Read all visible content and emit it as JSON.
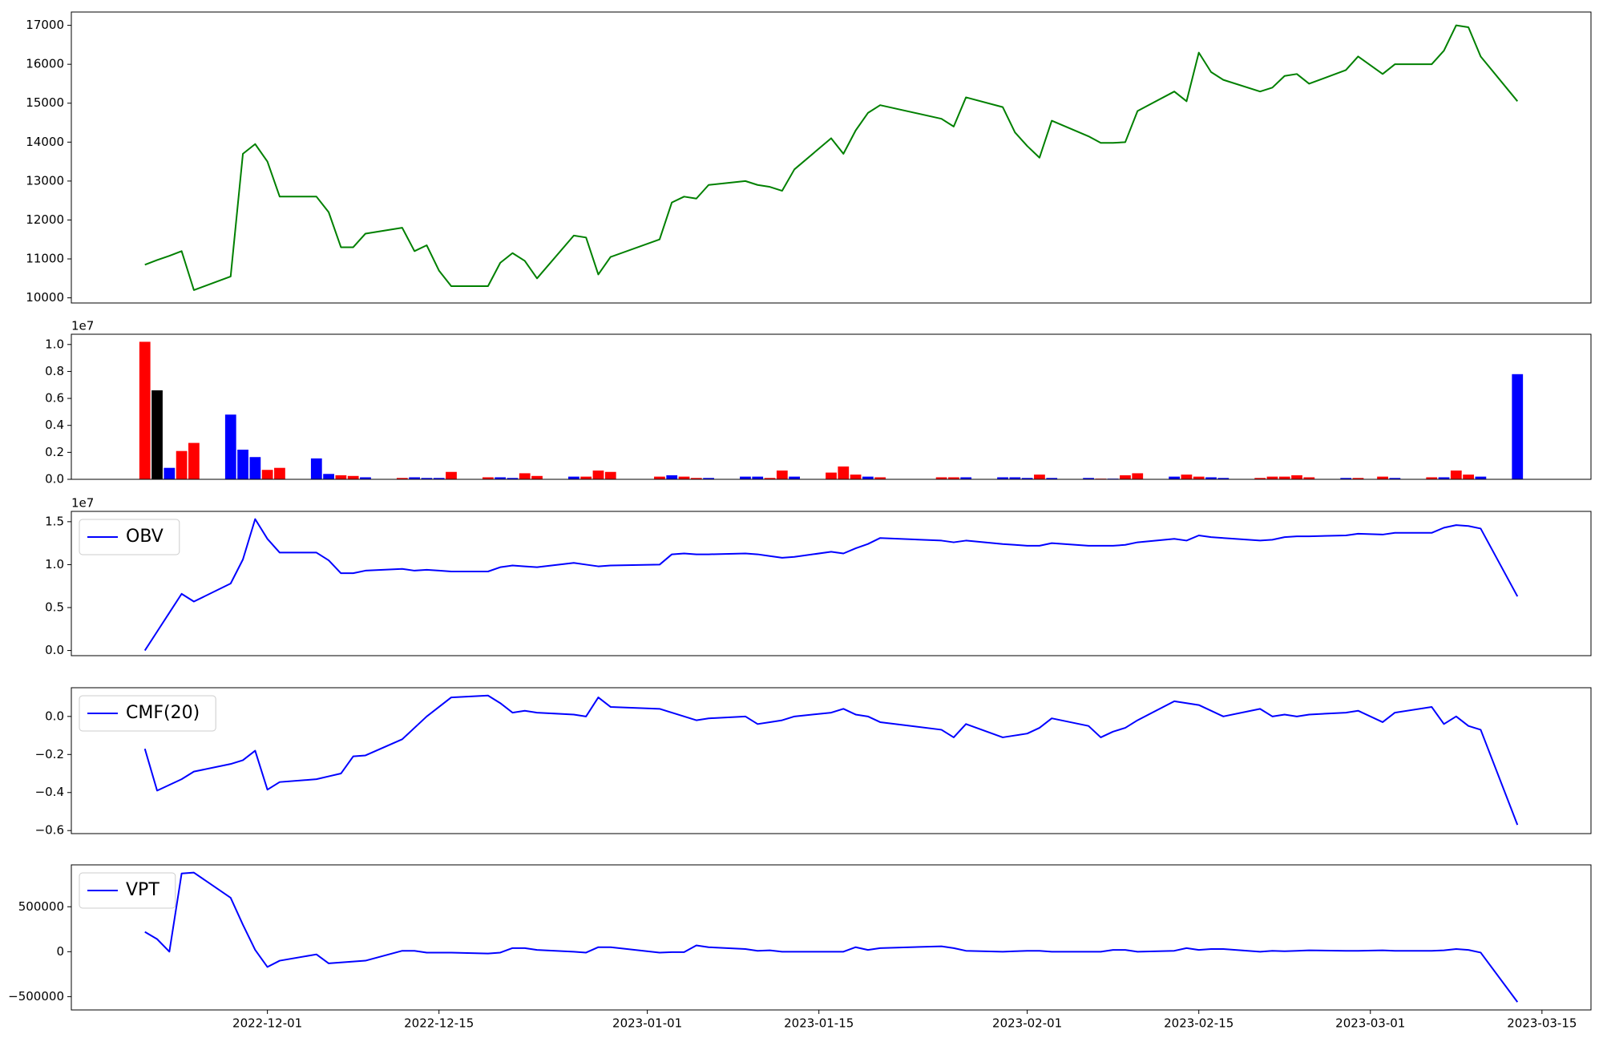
{
  "chart_data": [
    {
      "type": "line",
      "x": [
        "2022-11-21",
        "2022-11-22",
        "2022-11-23",
        "2022-11-24",
        "2022-11-25",
        "2022-11-28",
        "2022-11-29",
        "2022-11-30",
        "2022-12-01",
        "2022-12-02",
        "2022-12-05",
        "2022-12-06",
        "2022-12-07",
        "2022-12-08",
        "2022-12-09",
        "2022-12-12",
        "2022-12-13",
        "2022-12-14",
        "2022-12-15",
        "2022-12-16",
        "2022-12-19",
        "2022-12-20",
        "2022-12-21",
        "2022-12-22",
        "2022-12-23",
        "2022-12-26",
        "2022-12-27",
        "2022-12-28",
        "2022-12-29",
        "2023-01-02",
        "2023-01-03",
        "2023-01-04",
        "2023-01-05",
        "2023-01-06",
        "2023-01-09",
        "2023-01-10",
        "2023-01-11",
        "2023-01-12",
        "2023-01-13",
        "2023-01-16",
        "2023-01-17",
        "2023-01-18",
        "2023-01-19",
        "2023-01-20",
        "2023-01-25",
        "2023-01-26",
        "2023-01-27",
        "2023-01-30",
        "2023-01-31",
        "2023-02-01",
        "2023-02-02",
        "2023-02-03",
        "2023-02-06",
        "2023-02-07",
        "2023-02-08",
        "2023-02-09",
        "2023-02-10",
        "2023-02-13",
        "2023-02-14",
        "2023-02-15",
        "2023-02-16",
        "2023-02-17",
        "2023-02-20",
        "2023-02-21",
        "2023-02-22",
        "2023-02-23",
        "2023-02-24",
        "2023-02-27",
        "2023-02-28",
        "2023-03-02",
        "2023-03-03",
        "2023-03-06",
        "2023-03-07",
        "2023-03-08",
        "2023-03-09",
        "2023-03-10",
        "2023-03-13"
      ],
      "series": [
        {
          "color": "green",
          "values": [
            10850,
            10970,
            11080,
            11200,
            10200,
            10550,
            13700,
            13950,
            13500,
            12600,
            12600,
            12200,
            11300,
            11300,
            11650,
            11800,
            11200,
            11350,
            10700,
            10300,
            10300,
            10900,
            11150,
            10950,
            10500,
            11600,
            11550,
            10600,
            11050,
            11500,
            12450,
            12600,
            12550,
            12900,
            13000,
            12900,
            12850,
            12750,
            13300,
            14100,
            13700,
            14300,
            14750,
            14950,
            14600,
            14400,
            15150,
            14900,
            14250,
            13900,
            13600,
            14550,
            14150,
            13980,
            13980,
            14000,
            14800,
            15300,
            15050,
            16300,
            15800,
            15600,
            15300,
            15400,
            15700,
            15750,
            15500,
            15850,
            16200,
            15750,
            16000,
            16000,
            16350,
            17000,
            16950,
            16200,
            15050
          ]
        }
      ],
      "xlim": [
        "2022-11-15",
        "2023-03-19"
      ],
      "ylim": [
        9868,
        17342
      ],
      "yticks": [
        10000,
        11000,
        12000,
        13000,
        14000,
        15000,
        16000,
        17000
      ]
    },
    {
      "type": "bar",
      "x": [
        "2022-11-21",
        "2022-11-22",
        "2022-11-23",
        "2022-11-24",
        "2022-11-25",
        "2022-11-28",
        "2022-11-29",
        "2022-11-30",
        "2022-12-01",
        "2022-12-02",
        "2022-12-05",
        "2022-12-06",
        "2022-12-07",
        "2022-12-08",
        "2022-12-09",
        "2022-12-12",
        "2022-12-13",
        "2022-12-14",
        "2022-12-15",
        "2022-12-16",
        "2022-12-19",
        "2022-12-20",
        "2022-12-21",
        "2022-12-22",
        "2022-12-23",
        "2022-12-26",
        "2022-12-27",
        "2022-12-28",
        "2022-12-29",
        "2023-01-02",
        "2023-01-03",
        "2023-01-04",
        "2023-01-05",
        "2023-01-06",
        "2023-01-09",
        "2023-01-10",
        "2023-01-11",
        "2023-01-12",
        "2023-01-13",
        "2023-01-16",
        "2023-01-17",
        "2023-01-18",
        "2023-01-19",
        "2023-01-20",
        "2023-01-25",
        "2023-01-26",
        "2023-01-27",
        "2023-01-30",
        "2023-01-31",
        "2023-02-01",
        "2023-02-02",
        "2023-02-03",
        "2023-02-06",
        "2023-02-07",
        "2023-02-08",
        "2023-02-09",
        "2023-02-10",
        "2023-02-13",
        "2023-02-14",
        "2023-02-15",
        "2023-02-16",
        "2023-02-17",
        "2023-02-20",
        "2023-02-21",
        "2023-02-22",
        "2023-02-23",
        "2023-02-24",
        "2023-02-27",
        "2023-02-28",
        "2023-03-02",
        "2023-03-03",
        "2023-03-06",
        "2023-03-07",
        "2023-03-08",
        "2023-03-09",
        "2023-03-10",
        "2023-03-13"
      ],
      "values": [
        1.02,
        0.66,
        0.085,
        0.21,
        0.27,
        0.48,
        0.22,
        0.165,
        0.07,
        0.085,
        0.155,
        0.04,
        0.03,
        0.025,
        0.015,
        0.01,
        0.015,
        0.01,
        0.01,
        0.055,
        0.015,
        0.015,
        0.01,
        0.045,
        0.025,
        0.02,
        0.02,
        0.065,
        0.055,
        0.02,
        0.03,
        0.02,
        0.01,
        0.01,
        0.02,
        0.02,
        0.01,
        0.065,
        0.02,
        0.05,
        0.095,
        0.035,
        0.02,
        0.015,
        0.015,
        0.015,
        0.015,
        0.015,
        0.015,
        0.01,
        0.035,
        0.01,
        0.01,
        0.005,
        0.005,
        0.03,
        0.045,
        0.02,
        0.035,
        0.02,
        0.015,
        0.01,
        0.01,
        0.02,
        0.02,
        0.03,
        0.015,
        0.01,
        0.01,
        0.02,
        0.01,
        0.015,
        0.015,
        0.065,
        0.035,
        0.02,
        0.78
      ],
      "colors": [
        "red",
        "black",
        "blue",
        "red",
        "red",
        "blue",
        "blue",
        "blue",
        "red",
        "red",
        "blue",
        "blue",
        "red",
        "red",
        "blue",
        "red",
        "blue",
        "blue",
        "blue",
        "red",
        "red",
        "blue",
        "blue",
        "red",
        "red",
        "blue",
        "red",
        "red",
        "red",
        "red",
        "blue",
        "red",
        "red",
        "blue",
        "blue",
        "blue",
        "red",
        "red",
        "blue",
        "red",
        "red",
        "red",
        "blue",
        "red",
        "red",
        "red",
        "blue",
        "blue",
        "blue",
        "blue",
        "red",
        "blue",
        "blue",
        "red",
        "blue",
        "red",
        "red",
        "blue",
        "red",
        "red",
        "blue",
        "blue",
        "red",
        "red",
        "red",
        "red",
        "red",
        "blue",
        "red",
        "red",
        "blue",
        "red",
        "blue",
        "red",
        "red",
        "blue",
        "blue"
      ],
      "offset_label": "1e7",
      "xlim": [
        "2022-11-15",
        "2023-03-19"
      ],
      "ylim": [
        0,
        1.076
      ],
      "yticks": [
        {
          "value": 0,
          "label": "0.0"
        },
        {
          "value": 0.2,
          "label": "0.2"
        },
        {
          "value": 0.4,
          "label": "0.4"
        },
        {
          "value": 0.6,
          "label": "0.6"
        },
        {
          "value": 0.8,
          "label": "0.8"
        },
        {
          "value": 1,
          "label": "1.0"
        }
      ]
    },
    {
      "type": "line",
      "x": [
        "2022-11-21",
        "2022-11-22",
        "2022-11-23",
        "2022-11-24",
        "2022-11-25",
        "2022-11-28",
        "2022-11-29",
        "2022-11-30",
        "2022-12-01",
        "2022-12-02",
        "2022-12-05",
        "2022-12-06",
        "2022-12-07",
        "2022-12-08",
        "2022-12-09",
        "2022-12-12",
        "2022-12-13",
        "2022-12-14",
        "2022-12-15",
        "2022-12-16",
        "2022-12-19",
        "2022-12-20",
        "2022-12-21",
        "2022-12-22",
        "2022-12-23",
        "2022-12-26",
        "2022-12-27",
        "2022-12-28",
        "2022-12-29",
        "2023-01-02",
        "2023-01-03",
        "2023-01-04",
        "2023-01-05",
        "2023-01-06",
        "2023-01-09",
        "2023-01-10",
        "2023-01-11",
        "2023-01-12",
        "2023-01-13",
        "2023-01-16",
        "2023-01-17",
        "2023-01-18",
        "2023-01-19",
        "2023-01-20",
        "2023-01-25",
        "2023-01-26",
        "2023-01-27",
        "2023-01-30",
        "2023-01-31",
        "2023-02-01",
        "2023-02-02",
        "2023-02-03",
        "2023-02-06",
        "2023-02-07",
        "2023-02-08",
        "2023-02-09",
        "2023-02-10",
        "2023-02-13",
        "2023-02-14",
        "2023-02-15",
        "2023-02-16",
        "2023-02-17",
        "2023-02-20",
        "2023-02-21",
        "2023-02-22",
        "2023-02-23",
        "2023-02-24",
        "2023-02-27",
        "2023-02-28",
        "2023-03-02",
        "2023-03-03",
        "2023-03-06",
        "2023-03-07",
        "2023-03-08",
        "2023-03-09",
        "2023-03-10",
        "2023-03-13"
      ],
      "series": [
        {
          "name": "OBV",
          "color": "blue",
          "values": [
            0,
            0.22,
            0.44,
            0.66,
            0.57,
            0.78,
            1.06,
            1.53,
            1.3,
            1.14,
            1.14,
            1.05,
            0.9,
            0.9,
            0.93,
            0.95,
            0.93,
            0.94,
            0.93,
            0.92,
            0.92,
            0.97,
            0.99,
            0.98,
            0.97,
            1.02,
            1.0,
            0.98,
            0.99,
            1.0,
            1.12,
            1.13,
            1.12,
            1.12,
            1.13,
            1.12,
            1.1,
            1.08,
            1.09,
            1.15,
            1.13,
            1.19,
            1.24,
            1.31,
            1.28,
            1.26,
            1.28,
            1.24,
            1.23,
            1.22,
            1.22,
            1.25,
            1.22,
            1.22,
            1.22,
            1.23,
            1.26,
            1.3,
            1.28,
            1.34,
            1.32,
            1.31,
            1.28,
            1.29,
            1.32,
            1.33,
            1.33,
            1.34,
            1.36,
            1.35,
            1.37,
            1.37,
            1.43,
            1.46,
            1.45,
            1.42,
            0.63
          ]
        }
      ],
      "legend": "upper left",
      "offset_label": "1e7",
      "xlim": [
        "2022-11-15",
        "2023-03-19"
      ],
      "ylim": [
        -0.06,
        1.62
      ],
      "yticks": [
        {
          "value": 0,
          "label": "0.0"
        },
        {
          "value": 0.5,
          "label": "0.5"
        },
        {
          "value": 1,
          "label": "1.0"
        },
        {
          "value": 1.5,
          "label": "1.5"
        }
      ]
    },
    {
      "type": "line",
      "x": [
        "2022-11-21",
        "2022-11-22",
        "2022-11-23",
        "2022-11-24",
        "2022-11-25",
        "2022-11-28",
        "2022-11-29",
        "2022-11-30",
        "2022-12-01",
        "2022-12-02",
        "2022-12-05",
        "2022-12-06",
        "2022-12-07",
        "2022-12-08",
        "2022-12-09",
        "2022-12-12",
        "2022-12-13",
        "2022-12-14",
        "2022-12-15",
        "2022-12-16",
        "2022-12-19",
        "2022-12-20",
        "2022-12-21",
        "2022-12-22",
        "2022-12-23",
        "2022-12-26",
        "2022-12-27",
        "2022-12-28",
        "2022-12-29",
        "2023-01-02",
        "2023-01-03",
        "2023-01-04",
        "2023-01-05",
        "2023-01-06",
        "2023-01-09",
        "2023-01-10",
        "2023-01-11",
        "2023-01-12",
        "2023-01-13",
        "2023-01-16",
        "2023-01-17",
        "2023-01-18",
        "2023-01-19",
        "2023-01-20",
        "2023-01-25",
        "2023-01-26",
        "2023-01-27",
        "2023-01-30",
        "2023-01-31",
        "2023-02-01",
        "2023-02-02",
        "2023-02-03",
        "2023-02-06",
        "2023-02-07",
        "2023-02-08",
        "2023-02-09",
        "2023-02-10",
        "2023-02-13",
        "2023-02-14",
        "2023-02-15",
        "2023-02-16",
        "2023-02-17",
        "2023-02-20",
        "2023-02-21",
        "2023-02-22",
        "2023-02-23",
        "2023-02-24",
        "2023-02-27",
        "2023-02-28",
        "2023-03-02",
        "2023-03-03",
        "2023-03-06",
        "2023-03-07",
        "2023-03-08",
        "2023-03-09",
        "2023-03-10",
        "2023-03-13"
      ],
      "series": [
        {
          "name": "CMF(20)",
          "color": "blue",
          "values": [
            -0.17,
            -0.39,
            -0.36,
            -0.33,
            -0.29,
            -0.25,
            -0.23,
            -0.18,
            -0.385,
            -0.345,
            -0.33,
            -0.315,
            -0.3,
            -0.21,
            -0.205,
            -0.12,
            -0.06,
            0.0,
            0.05,
            0.1,
            0.11,
            0.07,
            0.02,
            0.03,
            0.02,
            0.01,
            0.0,
            0.1,
            0.05,
            0.04,
            0.02,
            0.0,
            -0.02,
            -0.01,
            0.0,
            -0.04,
            -0.03,
            -0.02,
            0.0,
            0.02,
            0.04,
            0.01,
            0.0,
            -0.03,
            -0.07,
            -0.11,
            -0.04,
            -0.11,
            -0.1,
            -0.09,
            -0.06,
            -0.01,
            -0.05,
            -0.11,
            -0.08,
            -0.06,
            -0.02,
            0.08,
            0.07,
            0.06,
            0.03,
            0.0,
            0.04,
            0.0,
            0.01,
            0.0,
            0.01,
            0.02,
            0.03,
            -0.03,
            0.02,
            0.05,
            -0.04,
            0.0,
            -0.05,
            -0.07,
            -0.57
          ]
        }
      ],
      "legend": "upper left",
      "xlim": [
        "2022-11-15",
        "2023-03-19"
      ],
      "ylim": [
        -0.616,
        0.151
      ],
      "yticks": [
        {
          "value": -0.6,
          "label": "−0.6"
        },
        {
          "value": -0.4,
          "label": "−0.4"
        },
        {
          "value": -0.2,
          "label": "−0.2"
        },
        {
          "value": 0,
          "label": "0.0"
        }
      ]
    },
    {
      "type": "line",
      "x": [
        "2022-11-21",
        "2022-11-22",
        "2022-11-23",
        "2022-11-24",
        "2022-11-25",
        "2022-11-28",
        "2022-11-29",
        "2022-11-30",
        "2022-12-01",
        "2022-12-02",
        "2022-12-05",
        "2022-12-06",
        "2022-12-07",
        "2022-12-08",
        "2022-12-09",
        "2022-12-12",
        "2022-12-13",
        "2022-12-14",
        "2022-12-15",
        "2022-12-16",
        "2022-12-19",
        "2022-12-20",
        "2022-12-21",
        "2022-12-22",
        "2022-12-23",
        "2022-12-26",
        "2022-12-27",
        "2022-12-28",
        "2022-12-29",
        "2023-01-02",
        "2023-01-03",
        "2023-01-04",
        "2023-01-05",
        "2023-01-06",
        "2023-01-09",
        "2023-01-10",
        "2023-01-11",
        "2023-01-12",
        "2023-01-13",
        "2023-01-16",
        "2023-01-17",
        "2023-01-18",
        "2023-01-19",
        "2023-01-20",
        "2023-01-25",
        "2023-01-26",
        "2023-01-27",
        "2023-01-30",
        "2023-01-31",
        "2023-02-01",
        "2023-02-02",
        "2023-02-03",
        "2023-02-06",
        "2023-02-07",
        "2023-02-08",
        "2023-02-09",
        "2023-02-10",
        "2023-02-13",
        "2023-02-14",
        "2023-02-15",
        "2023-02-16",
        "2023-02-17",
        "2023-02-20",
        "2023-02-21",
        "2023-02-22",
        "2023-02-23",
        "2023-02-24",
        "2023-02-27",
        "2023-02-28",
        "2023-03-02",
        "2023-03-03",
        "2023-03-06",
        "2023-03-07",
        "2023-03-08",
        "2023-03-09",
        "2023-03-10",
        "2023-03-13"
      ],
      "series": [
        {
          "name": "VPT",
          "color": "blue",
          "values": [
            220000,
            140000,
            0,
            870000,
            880000,
            600000,
            300000,
            20000,
            -170000,
            -100000,
            -30000,
            -130000,
            -120000,
            -110000,
            -100000,
            10000,
            10000,
            -10000,
            -10000,
            -10000,
            -20000,
            -10000,
            40000,
            40000,
            20000,
            0,
            -10000,
            50000,
            50000,
            -10000,
            -5000,
            -5000,
            70000,
            50000,
            30000,
            10000,
            15000,
            0,
            0,
            0,
            0,
            50000,
            20000,
            40000,
            60000,
            40000,
            10000,
            0,
            5000,
            10000,
            10000,
            0,
            0,
            0,
            20000,
            20000,
            0,
            10000,
            40000,
            20000,
            30000,
            30000,
            0,
            10000,
            5000,
            10000,
            15000,
            10000,
            10000,
            15000,
            10000,
            10000,
            15000,
            30000,
            20000,
            -10000,
            -560000
          ]
        }
      ],
      "legend": "upper left",
      "xlim": [
        "2022-11-15",
        "2023-03-19"
      ],
      "ylim": [
        -648000,
        966000
      ],
      "yticks": [
        {
          "value": -500000,
          "label": "−500000"
        },
        0,
        500000
      ],
      "xticks": [
        "2022-12-01",
        "2022-12-15",
        "2023-01-01",
        "2023-01-15",
        "2023-02-01",
        "2023-02-15",
        "2023-03-01",
        "2023-03-15"
      ]
    }
  ]
}
